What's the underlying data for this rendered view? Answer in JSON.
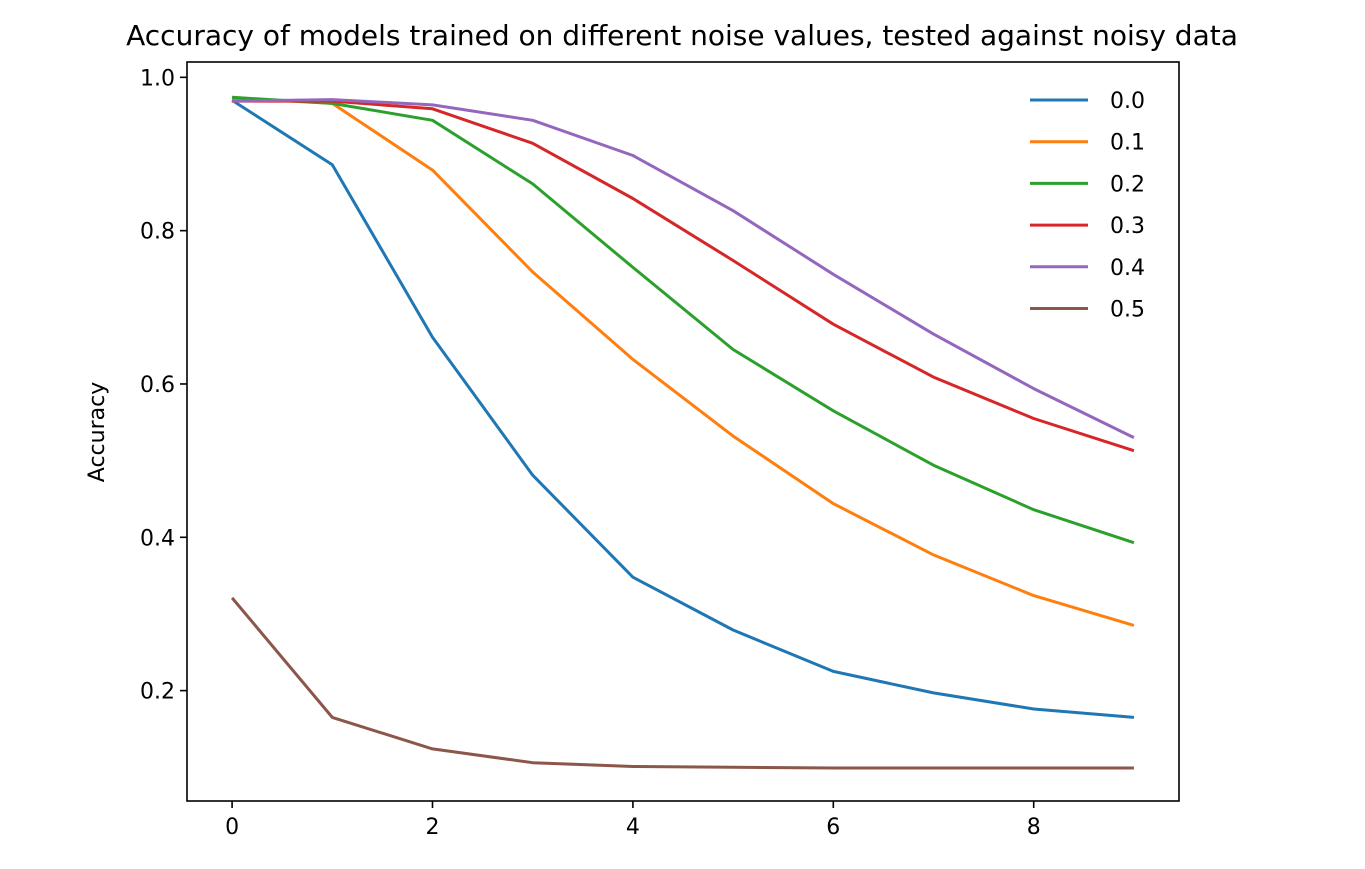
{
  "chart_data": {
    "type": "line",
    "title": "Accuracy of models trained on different noise values, tested against noisy data",
    "xlabel": "",
    "ylabel": "Accuracy",
    "x": [
      0,
      1,
      2,
      3,
      4,
      5,
      6,
      7,
      8,
      9
    ],
    "xlim": [
      -0.45,
      9.45
    ],
    "ylim": [
      0.056,
      1.02
    ],
    "xticks": [
      0,
      2,
      4,
      6,
      8
    ],
    "xtick_labels": [
      "0",
      "2",
      "4",
      "6",
      "8"
    ],
    "yticks": [
      0.2,
      0.4,
      0.6,
      0.8,
      1.0
    ],
    "ytick_labels": [
      "0.2",
      "0.4",
      "0.6",
      "0.8",
      "1.0"
    ],
    "grid": false,
    "legend_position": "top-right",
    "series": [
      {
        "name": "0.0",
        "color": "#1f77b4",
        "values": [
          0.97,
          0.886,
          0.661,
          0.481,
          0.348,
          0.279,
          0.225,
          0.197,
          0.176,
          0.165
        ]
      },
      {
        "name": "0.1",
        "color": "#ff7f0e",
        "values": [
          0.973,
          0.966,
          0.879,
          0.746,
          0.632,
          0.532,
          0.444,
          0.377,
          0.324,
          0.285
        ]
      },
      {
        "name": "0.2",
        "color": "#2ca02c",
        "values": [
          0.974,
          0.966,
          0.944,
          0.861,
          0.752,
          0.645,
          0.565,
          0.494,
          0.436,
          0.393
        ]
      },
      {
        "name": "0.3",
        "color": "#d62728",
        "values": [
          0.969,
          0.969,
          0.959,
          0.914,
          0.842,
          0.761,
          0.678,
          0.609,
          0.555,
          0.513
        ]
      },
      {
        "name": "0.4",
        "color": "#9467bd",
        "values": [
          0.969,
          0.971,
          0.964,
          0.944,
          0.898,
          0.826,
          0.743,
          0.665,
          0.594,
          0.53
        ]
      },
      {
        "name": "0.5",
        "color": "#8c564b",
        "values": [
          0.321,
          0.165,
          0.124,
          0.106,
          0.101,
          0.1,
          0.099,
          0.099,
          0.099,
          0.099
        ]
      }
    ]
  }
}
